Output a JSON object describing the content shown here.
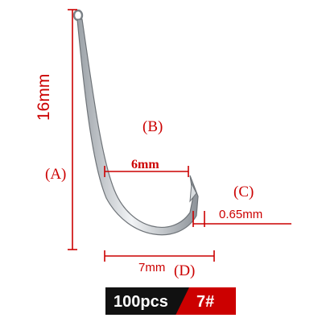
{
  "labels": {
    "length": "16mm",
    "point_a": "(A)",
    "point_b": "(B)",
    "point_c": "(C)",
    "point_d": "(D)",
    "gap": "6mm",
    "wire": "0.65mm",
    "width": "7mm"
  },
  "badge": {
    "quantity": "100pcs",
    "size": "7#"
  },
  "colors": {
    "dimension": "#cc0000",
    "hook_metal": "#bfc4c8",
    "hook_edge": "#6e7378",
    "badge_dark": "#111111",
    "badge_accent": "#cc0000"
  }
}
